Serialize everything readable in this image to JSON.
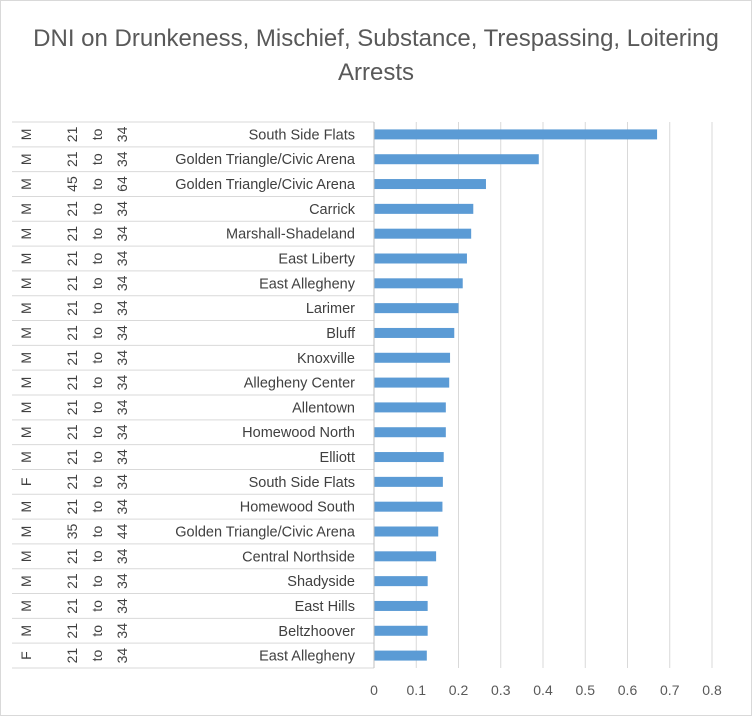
{
  "chart_data": {
    "type": "bar",
    "orientation": "horizontal",
    "title": "DNI on Drunkeness, Mischief, Substance, Trespassing, Loitering Arrests",
    "xlabel": "",
    "ylabel": "",
    "xlim": [
      0,
      0.8
    ],
    "xticks": [
      "0",
      "0.1",
      "0.2",
      "0.3",
      "0.4",
      "0.5",
      "0.6",
      "0.7",
      "0.8"
    ],
    "grid": true,
    "legend": "none",
    "bar_color": "#5b9bd5",
    "categories": [
      {
        "gender": "M",
        "age_low": "21",
        "to": "to",
        "age_high": "34",
        "neighborhood": "South Side Flats"
      },
      {
        "gender": "M",
        "age_low": "21",
        "to": "to",
        "age_high": "34",
        "neighborhood": "Golden Triangle/Civic Arena"
      },
      {
        "gender": "M",
        "age_low": "45",
        "to": "to",
        "age_high": "64",
        "neighborhood": "Golden Triangle/Civic Arena"
      },
      {
        "gender": "M",
        "age_low": "21",
        "to": "to",
        "age_high": "34",
        "neighborhood": "Carrick"
      },
      {
        "gender": "M",
        "age_low": "21",
        "to": "to",
        "age_high": "34",
        "neighborhood": "Marshall-Shadeland"
      },
      {
        "gender": "M",
        "age_low": "21",
        "to": "to",
        "age_high": "34",
        "neighborhood": "East Liberty"
      },
      {
        "gender": "M",
        "age_low": "21",
        "to": "to",
        "age_high": "34",
        "neighborhood": "East Allegheny"
      },
      {
        "gender": "M",
        "age_low": "21",
        "to": "to",
        "age_high": "34",
        "neighborhood": "Larimer"
      },
      {
        "gender": "M",
        "age_low": "21",
        "to": "to",
        "age_high": "34",
        "neighborhood": "Bluff"
      },
      {
        "gender": "M",
        "age_low": "21",
        "to": "to",
        "age_high": "34",
        "neighborhood": "Knoxville"
      },
      {
        "gender": "M",
        "age_low": "21",
        "to": "to",
        "age_high": "34",
        "neighborhood": "Allegheny Center"
      },
      {
        "gender": "M",
        "age_low": "21",
        "to": "to",
        "age_high": "34",
        "neighborhood": "Allentown"
      },
      {
        "gender": "M",
        "age_low": "21",
        "to": "to",
        "age_high": "34",
        "neighborhood": "Homewood North"
      },
      {
        "gender": "M",
        "age_low": "21",
        "to": "to",
        "age_high": "34",
        "neighborhood": "Elliott"
      },
      {
        "gender": "F",
        "age_low": "21",
        "to": "to",
        "age_high": "34",
        "neighborhood": "South Side Flats"
      },
      {
        "gender": "M",
        "age_low": "21",
        "to": "to",
        "age_high": "34",
        "neighborhood": "Homewood South"
      },
      {
        "gender": "M",
        "age_low": "35",
        "to": "to",
        "age_high": "44",
        "neighborhood": "Golden Triangle/Civic Arena"
      },
      {
        "gender": "M",
        "age_low": "21",
        "to": "to",
        "age_high": "34",
        "neighborhood": "Central Northside"
      },
      {
        "gender": "M",
        "age_low": "21",
        "to": "to",
        "age_high": "34",
        "neighborhood": "Shadyside"
      },
      {
        "gender": "M",
        "age_low": "21",
        "to": "to",
        "age_high": "34",
        "neighborhood": "East Hills"
      },
      {
        "gender": "M",
        "age_low": "21",
        "to": "to",
        "age_high": "34",
        "neighborhood": "Beltzhoover"
      },
      {
        "gender": "F",
        "age_low": "21",
        "to": "to",
        "age_high": "34",
        "neighborhood": "East Allegheny"
      }
    ],
    "values": [
      0.67,
      0.39,
      0.265,
      0.235,
      0.23,
      0.22,
      0.21,
      0.2,
      0.19,
      0.18,
      0.178,
      0.17,
      0.17,
      0.165,
      0.163,
      0.162,
      0.152,
      0.147,
      0.127,
      0.127,
      0.127,
      0.125
    ]
  }
}
